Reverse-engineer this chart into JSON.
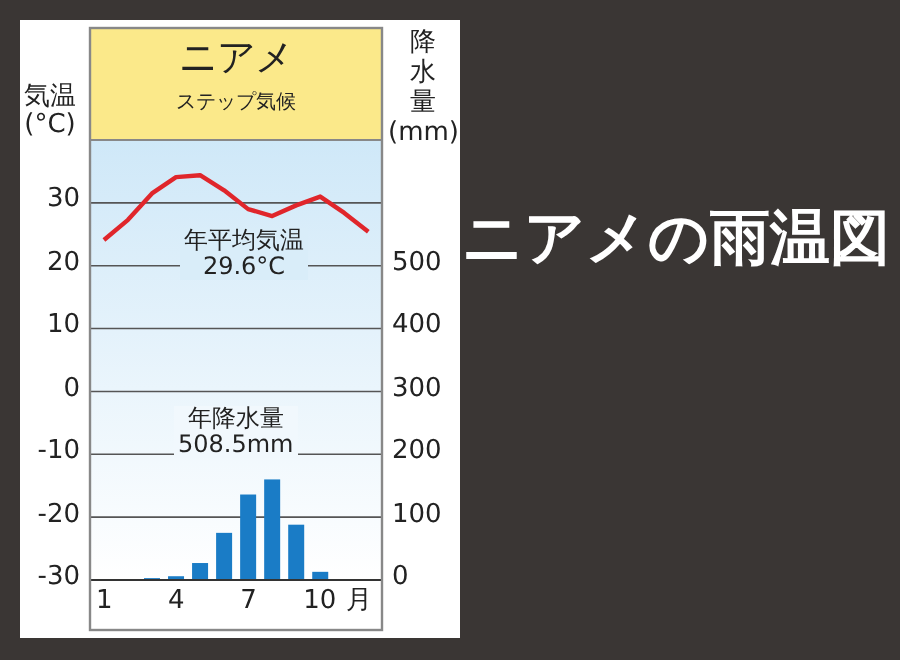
{
  "chart_data": {
    "type": "bar",
    "title": "ニアメの雨温図",
    "subtitle": "ニアメ",
    "annotations": [
      "ステップ気候",
      "年平均気温\n29.6°C",
      "年降水量\n508.5mm"
    ],
    "ylabel": "気温\n(°C)",
    "y2label": "降水量\n(mm)",
    "xlabel": "月",
    "categories": [
      "1",
      null,
      null,
      "4",
      null,
      null,
      "7",
      null,
      null,
      "10",
      null,
      null
    ],
    "series": [
      {
        "type": "line",
        "color": "#e0262b",
        "values": [
          24.1,
          27.3,
          31.5,
          34.1,
          34.4,
          32.0,
          29.0,
          27.9,
          29.6,
          31.0,
          28.4,
          25.4
        ]
      },
      {
        "axis": "y2",
        "color": "#1a7cc6",
        "values": [
          0,
          0,
          3,
          6,
          27,
          75,
          136,
          160,
          88,
          13,
          0,
          0
        ]
      }
    ],
    "ylim": [
      -30,
      40
    ],
    "yticks": [
      -30,
      -20,
      -10,
      0,
      10,
      20,
      30
    ],
    "y2lim": [
      0,
      700
    ],
    "y2ticks": [
      0,
      100,
      200,
      300,
      400,
      500
    ],
    "grid": "y"
  }
}
